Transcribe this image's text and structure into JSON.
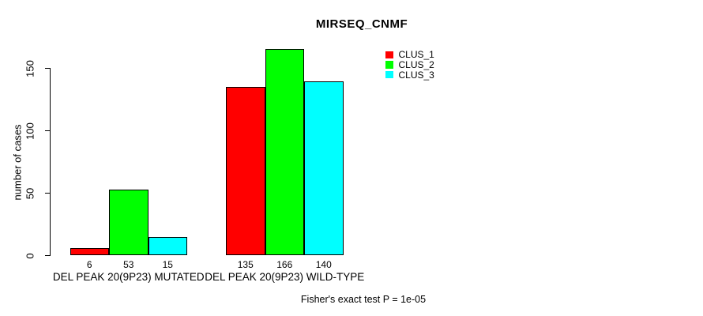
{
  "chart_data": {
    "type": "bar",
    "title": "MIRSEQ_CNMF",
    "xlabel": "",
    "ylabel": "number of cases",
    "categories": [
      "DEL PEAK 20(9P23) MUTATED",
      "DEL PEAK 20(9P23) WILD-TYPE"
    ],
    "series": [
      {
        "name": "CLUS_1",
        "color": "#ff0000",
        "values": [
          6,
          135
        ]
      },
      {
        "name": "CLUS_2",
        "color": "#00ff00",
        "values": [
          53,
          166
        ]
      },
      {
        "name": "CLUS_3",
        "color": "#00ffff",
        "values": [
          15,
          140
        ]
      }
    ],
    "bar_value_labels": [
      [
        "6",
        "53",
        "15"
      ],
      [
        "135",
        "166",
        "140"
      ]
    ],
    "yticks": [
      "0",
      "50",
      "100",
      "150"
    ],
    "ytick_values": [
      0,
      50,
      100,
      150
    ],
    "ylim": [
      0,
      166
    ],
    "grid": false,
    "legend_position": "top-right",
    "bar_border_color": "#000000"
  },
  "legend": {
    "entries": [
      {
        "label": "CLUS_1",
        "color": "#ff0000"
      },
      {
        "label": "CLUS_2",
        "color": "#00ff00"
      },
      {
        "label": "CLUS_3",
        "color": "#00ffff"
      }
    ]
  },
  "footer": {
    "note": "Fisher's exact test P = 1e-05"
  },
  "colors": {
    "background": "#ffffff",
    "axis": "#000000",
    "text": "#000000"
  }
}
